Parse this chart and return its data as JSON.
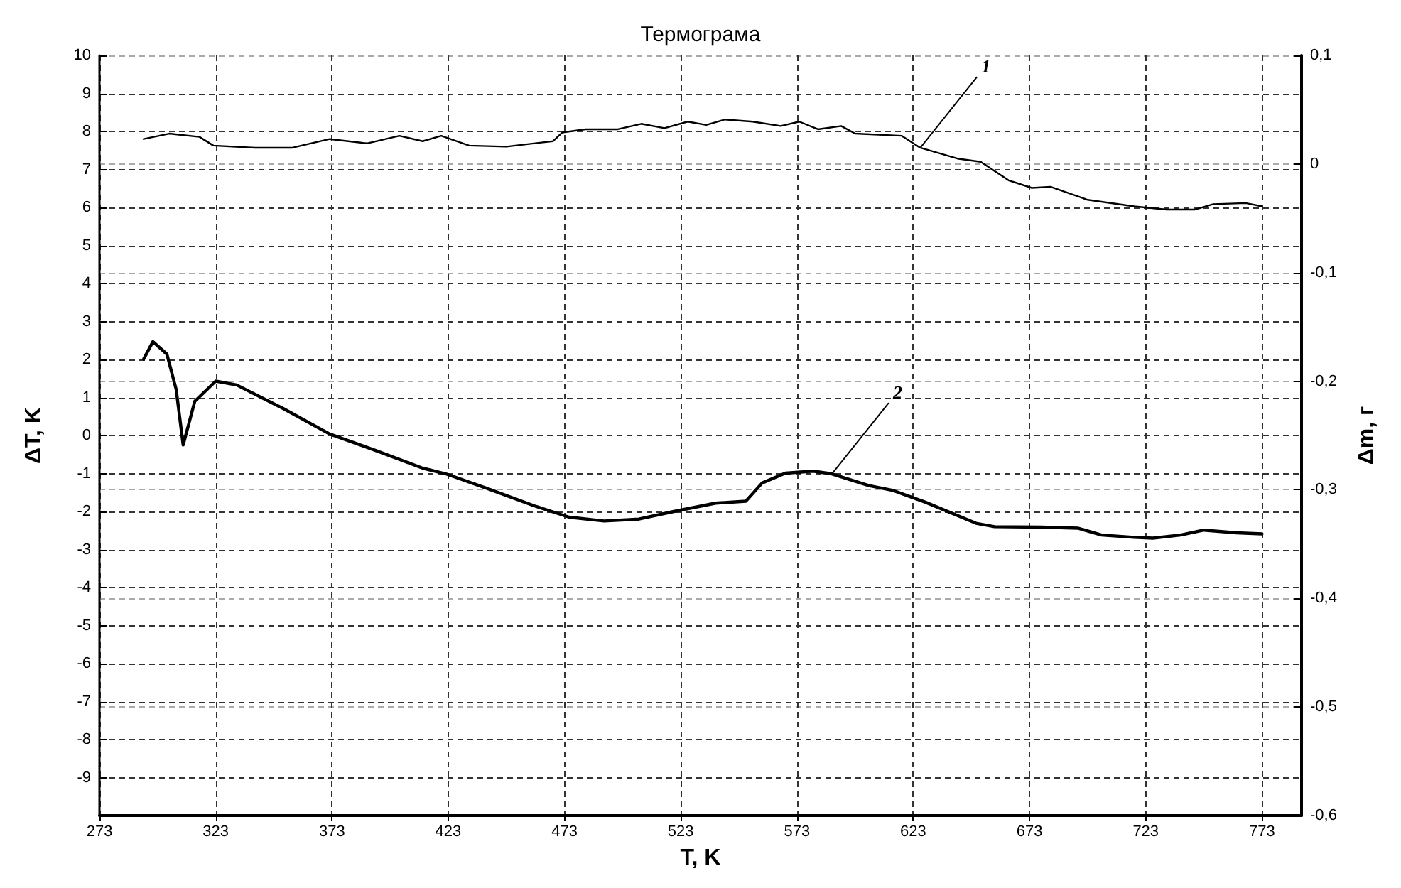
{
  "chart_data": {
    "type": "line",
    "title": "Термограма",
    "xlabel": "T, K",
    "ylabel": "ΔT, K",
    "y2label": "Δm, г",
    "xlim": [
      273,
      790
    ],
    "xticks": [
      273,
      323,
      373,
      423,
      473,
      523,
      573,
      623,
      673,
      723,
      773
    ],
    "ylim": [
      -10,
      10
    ],
    "yticks": [
      -9,
      -8,
      -7,
      -6,
      -5,
      -4,
      -3,
      -2,
      -1,
      0,
      1,
      2,
      3,
      4,
      5,
      6,
      7,
      8,
      9,
      10
    ],
    "y2lim": [
      -0.6,
      0.1
    ],
    "y2ticks": [
      {
        "value": -0.6,
        "label": "-0,6"
      },
      {
        "value": -0.5,
        "label": "-0,5"
      },
      {
        "value": -0.4,
        "label": "-0,4"
      },
      {
        "value": -0.3,
        "label": "-0,3"
      },
      {
        "value": -0.2,
        "label": "-0,2"
      },
      {
        "value": -0.1,
        "label": "-0,1"
      },
      0,
      {
        "value": 0.1,
        "label": "0,1"
      }
    ],
    "grid": true,
    "marker": "none",
    "line_style": "solid",
    "series": [
      {
        "color": "#000000",
        "axis": "y2",
        "x": [
          292,
          303,
          316,
          322,
          340,
          356,
          372,
          388,
          402,
          412,
          420,
          432,
          448,
          468,
          472,
          482,
          496,
          506,
          516,
          526,
          534,
          542,
          554,
          566,
          574,
          582,
          592,
          598,
          618,
          626,
          642,
          652,
          664,
          674,
          682,
          698,
          718,
          732,
          744,
          752,
          766,
          773
        ],
        "values": [
          0.023,
          0.028,
          0.025,
          0.017,
          0.015,
          0.015,
          0.023,
          0.019,
          0.026,
          0.021,
          0.026,
          0.017,
          0.016,
          0.021,
          0.029,
          0.032,
          0.032,
          0.037,
          0.033,
          0.039,
          0.036,
          0.041,
          0.039,
          0.035,
          0.039,
          0.032,
          0.035,
          0.028,
          0.026,
          0.015,
          0.005,
          0.002,
          -0.015,
          -0.022,
          -0.021,
          -0.033,
          -0.039,
          -0.042,
          -0.042,
          -0.037,
          -0.036,
          -0.039
        ]
      },
      {
        "color": "#000000",
        "x": [
          292,
          296,
          302,
          306,
          309,
          314,
          323,
          332,
          352,
          372,
          392,
          412,
          422,
          440,
          460,
          475,
          490,
          505,
          520,
          538,
          551,
          558,
          568,
          580,
          588,
          604,
          614,
          628,
          650,
          658,
          678,
          694,
          704,
          718,
          726,
          738,
          748,
          762,
          773
        ],
        "values": [
          2.01,
          2.47,
          2.14,
          1.21,
          -0.25,
          0.9,
          1.43,
          1.33,
          0.71,
          0.04,
          -0.4,
          -0.86,
          -1.01,
          -1.4,
          -1.85,
          -2.15,
          -2.25,
          -2.2,
          -2.0,
          -1.78,
          -1.73,
          -1.25,
          -0.99,
          -0.94,
          -1.01,
          -1.32,
          -1.44,
          -1.75,
          -2.31,
          -2.4,
          -2.41,
          -2.44,
          -2.62,
          -2.68,
          -2.7,
          -2.62,
          -2.49,
          -2.56,
          -2.59
        ]
      }
    ],
    "annotations": [
      {
        "text": "1",
        "x": 626,
        "y": 7.57
      },
      {
        "text": "2",
        "x": 588,
        "y": -1.01
      }
    ]
  }
}
